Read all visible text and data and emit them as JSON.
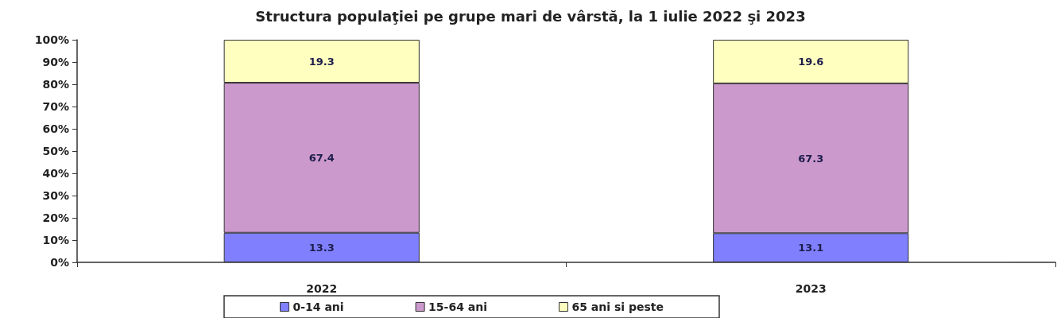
{
  "chart_data": {
    "type": "bar",
    "title": "Structura populaţiei pe grupe mari de vârstă, la 1 iulie 2022 şi 2023",
    "categories": [
      "2022",
      "2023"
    ],
    "series": [
      {
        "name": "0-14 ani",
        "color": "#8080ff",
        "values": [
          13.3,
          13.1
        ]
      },
      {
        "name": "15-64 ani",
        "color": "#cc99cc",
        "values": [
          67.4,
          67.3
        ]
      },
      {
        "name": "65 ani si peste",
        "color": "#ffffc0",
        "values": [
          19.3,
          19.6
        ]
      }
    ],
    "stacked": true,
    "ylim": [
      0,
      100
    ],
    "yticks": [
      {
        "value": 0,
        "label": "0%"
      },
      {
        "value": 10,
        "label": "10%"
      },
      {
        "value": 20,
        "label": "20%"
      },
      {
        "value": 30,
        "label": "30%"
      },
      {
        "value": 40,
        "label": "40%"
      },
      {
        "value": 50,
        "label": "50%"
      },
      {
        "value": 60,
        "label": "60%"
      },
      {
        "value": 70,
        "label": "70%"
      },
      {
        "value": 80,
        "label": "80%"
      },
      {
        "value": 90,
        "label": "90%"
      },
      {
        "value": 100,
        "label": "100%"
      }
    ],
    "data_labels": true,
    "grid": false,
    "legend": "bottom"
  }
}
